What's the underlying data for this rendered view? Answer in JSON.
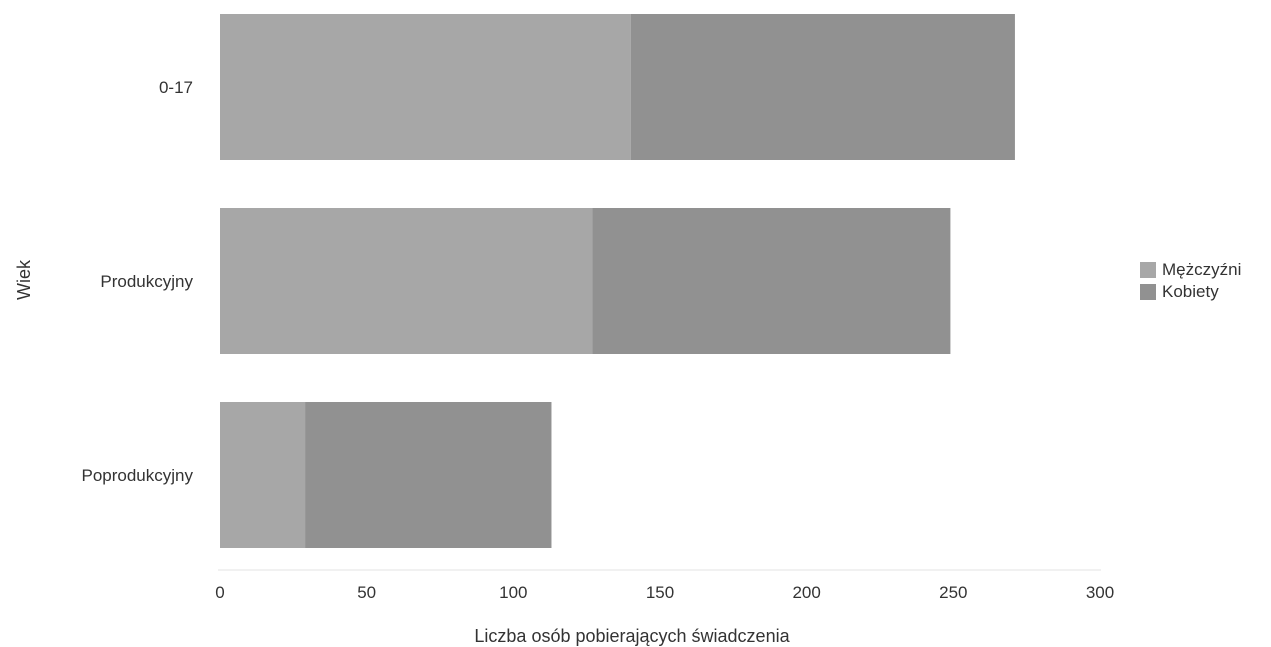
{
  "chart_data": {
    "type": "bar",
    "orientation": "horizontal",
    "stacked": true,
    "categories": [
      "0-17",
      "Produkcyjny",
      "Poprodukcyjny"
    ],
    "series": [
      {
        "name": "Mężczyźni",
        "values": [
          140,
          127,
          29
        ],
        "color": "#a7a7a7"
      },
      {
        "name": "Kobiety",
        "values": [
          131,
          122,
          84
        ],
        "color": "#919191"
      }
    ],
    "xlabel": "Liczba osób pobierających świadczenia",
    "ylabel": "Wiek",
    "xlim": [
      0,
      300
    ],
    "xticks": [
      0,
      50,
      100,
      150,
      200,
      250,
      300
    ],
    "legend_position": "right",
    "grid": false
  }
}
